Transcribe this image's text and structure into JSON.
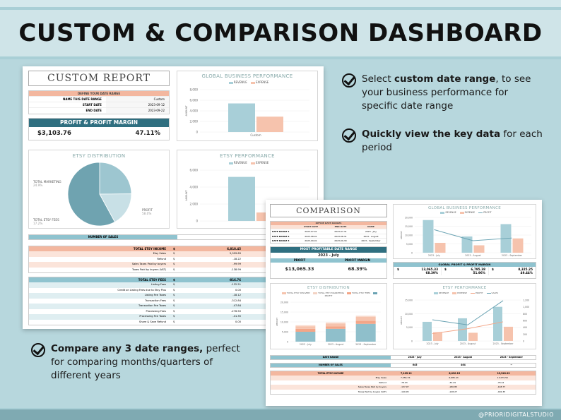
{
  "banner": {
    "title": "CUSTOM & COMPARISON DASHBOARD",
    "credit": "@PRIORIDIGITALSTUDIO"
  },
  "bullets": [
    {
      "bold": "custom date range",
      "pre": "Select ",
      "post": ", to see your business performance for specific date range"
    },
    {
      "bold": "Quickly view the key data",
      "pre": "",
      "post": " for each period"
    },
    {
      "bold": "Compare any 3 date ranges,",
      "pre": "",
      "post": " perfect for comparing months/quarters of different years"
    }
  ],
  "custom": {
    "title": "CUSTOM REPORT",
    "date_head": "DEFINE YOUR DATE RANGE",
    "date_rows": [
      {
        "label": "NAME THIS DATE RANGE",
        "value": "Custom"
      },
      {
        "label": "START DATE",
        "value": "2023-09-12"
      },
      {
        "label": "END DATE",
        "value": "2023-09-22"
      }
    ],
    "profit_head": "PROFIT & PROFIT MARGIN",
    "profit": "$3,103.76",
    "margin": "47.11%",
    "gbp_title": "GLOBAL BUSINESS PERFORMANCE",
    "legend_rev": "REVENUE",
    "legend_exp": "EXPENSE",
    "y_label": "AMOUNT",
    "gbp_ticks": [
      "8,000",
      "6,000",
      "4,000",
      "2,000",
      "0"
    ],
    "gbp_cat": "Custom",
    "dist_title": "ETSY DISTRIBUTION",
    "pie_labels": [
      {
        "name": "TOTAL MARKETING",
        "pct": "24.9%"
      },
      {
        "name": "TOTAL ETSY FEES",
        "pct": "17.2%"
      },
      {
        "name": "PROFIT",
        "pct": "58.0%"
      }
    ],
    "ep_title": "ETSY PERFORMANCE",
    "ep_ticks": [
      "6,000",
      "4,000",
      "2,000",
      "0"
    ],
    "sales_label": "NUMBER OF SALES",
    "sales_value": "438",
    "income_head": "TOTAL ETSY INCOME",
    "income_total": "6,818.45",
    "income_rows": [
      {
        "label": "Etsy Sales",
        "value": "5,099.69"
      },
      {
        "label": "Refund",
        "value": "-18.22"
      },
      {
        "label": "Sales Taxes Paid by buyers",
        "value": "-99.99"
      },
      {
        "label": "Taxes Paid by buyers (VAT)",
        "value": "-138.99"
      }
    ],
    "fees_head": "TOTAL ETSY FEES",
    "fees_total": "-816.76",
    "fee_rows": [
      {
        "label": "Listing Fees",
        "value": "-132.51"
      },
      {
        "label": "Credit on Listing Fees due to Etsy Plus",
        "value": "0.00"
      },
      {
        "label": "Listing Fee Taxes",
        "value": "-18.12"
      },
      {
        "label": "Transaction Fees",
        "value": "-312.84"
      },
      {
        "label": "Transaction Fee Taxes",
        "value": "-47.84"
      },
      {
        "label": "Processing Fees",
        "value": "-276.50"
      },
      {
        "label": "Processing Fee Taxes",
        "value": "-41.35"
      },
      {
        "label": "Share & Save Refund",
        "value": "0.00"
      }
    ],
    "currency": "$"
  },
  "comparison": {
    "title": "COMPARISON",
    "date_head": "DEFINE DATE RANGES",
    "cols": [
      "START DATE",
      "END DATE",
      "NAME"
    ],
    "ranges": [
      {
        "label": "DATE RANGE 1",
        "start": "2023-07-01",
        "end": "2023-07-31",
        "name": "2023 - July"
      },
      {
        "label": "DATE RANGE 2",
        "start": "2023-08-01",
        "end": "2023-08-31",
        "name": "2023 - August"
      },
      {
        "label": "DATE RANGE 3",
        "start": "2023-09-01",
        "end": "2023-09-30",
        "name": "2023 - September"
      }
    ],
    "most_head": "MOST PROFITABLE DATE RANGE",
    "most_value": "2023 - July",
    "profit_col": "PROFIT",
    "margin_col": "PROFIT MARGIN",
    "best_profit": "$13,065.33",
    "best_margin": "68.39%",
    "gbp_title": "GLOBAL BUSINESS PERFORMANCE",
    "gpm_head": "GLOBAL PROFIT & PROFIT MARGIN",
    "gpm": [
      {
        "profit": "13,065.33",
        "margin": "68.39%"
      },
      {
        "profit": "6,795.38",
        "margin": "51.96%"
      },
      {
        "profit": "8,325.25",
        "margin": "49.44%"
      }
    ],
    "legend_profit": "PROFIT",
    "legend_sales": "SALES",
    "gbp_ticks": [
      "20,000",
      "15,000",
      "10,000",
      "5,000",
      "0"
    ],
    "categories": [
      "2023 - July",
      "2023 - August",
      "2023 - September"
    ],
    "dist_title": "ETSY DISTRIBUTION",
    "dist_legend": [
      "TOTAL ETSY DELIVERY",
      "TOTAL ETSY MARKETING",
      "TOTAL ETSY FEES",
      "PROFIT"
    ],
    "dist_ticks": [
      "20,000",
      "15,000",
      "10,000",
      "5,000",
      "0"
    ],
    "ep_title": "ETSY PERFORMANCE",
    "ep_ticks": [
      "15,000",
      "10,000",
      "5,000",
      "0"
    ],
    "ep_right_ticks": [
      "1,200",
      "1,000",
      "800",
      "600",
      "400",
      "200",
      "0"
    ],
    "range_label": "DATE RANGE",
    "sales_label": "NUMBER OF SALES",
    "sales_values": [
      "645",
      "464",
      "--"
    ],
    "income_head": "TOTAL ETSY INCOME",
    "income_totals": [
      "7,105.12",
      "8,030.15",
      "13,549.99"
    ],
    "income_rows": [
      {
        "label": "Etsy Sales",
        "v": [
          "7,556.76",
          "6,685.43",
          "13,279.50"
        ]
      },
      {
        "label": "Refund",
        "v": [
          "-78.03",
          "-30.29",
          "-78.44"
        ]
      },
      {
        "label": "Sales Taxes Paid by buyers",
        "v": [
          "-137.97",
          "-180.85",
          "-148.77"
        ]
      },
      {
        "label": "Taxes Paid by buyers (VAT)",
        "v": [
          "-149.95",
          "-148.27",
          "-402.35"
        ]
      }
    ]
  },
  "colors": {
    "revenue": "#a8cfd8",
    "expense": "#f6c3ad",
    "profit_line": "#6aa3b3",
    "header_orange": "#f3b79f",
    "header_teal": "#8fc3cf"
  },
  "chart_data": [
    {
      "type": "bar",
      "title": "GLOBAL BUSINESS PERFORMANCE",
      "categories": [
        "Custom"
      ],
      "series": [
        {
          "name": "REVENUE",
          "values": [
            5400
          ]
        },
        {
          "name": "EXPENSE",
          "values": [
            2900
          ]
        }
      ],
      "ylabel": "AMOUNT",
      "ylim": [
        0,
        8000
      ]
    },
    {
      "type": "pie",
      "title": "ETSY DISTRIBUTION",
      "categories": [
        "TOTAL MARKETING",
        "TOTAL ETSY FEES",
        "PROFIT"
      ],
      "values": [
        24.9,
        17.2,
        58.0
      ]
    },
    {
      "type": "bar",
      "title": "ETSY PERFORMANCE",
      "categories": [
        ""
      ],
      "series": [
        {
          "name": "REVENUE",
          "values": [
            5200
          ]
        },
        {
          "name": "EXPENSE",
          "values": [
            1000
          ]
        }
      ],
      "ylabel": "AMOUNT",
      "ylim": [
        0,
        6000
      ]
    },
    {
      "type": "bar",
      "title": "GLOBAL BUSINESS PERFORMANCE",
      "categories": [
        "2023 - July",
        "2023 - August",
        "2023 - September"
      ],
      "series": [
        {
          "name": "REVENUE",
          "values": [
            18500,
            9200,
            16200
          ]
        },
        {
          "name": "EXPENSE",
          "values": [
            5600,
            4200,
            8100
          ]
        },
        {
          "name": "PROFIT",
          "values": [
            13065,
            6795,
            8325
          ]
        }
      ],
      "ylabel": "AMOUNT",
      "ylim": [
        0,
        20000
      ]
    },
    {
      "type": "bar",
      "title": "ETSY DISTRIBUTION",
      "categories": [
        "2023 - July",
        "2023 - August",
        "2023 - September"
      ],
      "series": [
        {
          "name": "PROFIT",
          "values": [
            5000,
            6500,
            9000
          ]
        },
        {
          "name": "TOTAL ETSY FEES",
          "values": [
            1500,
            1200,
            1500
          ]
        },
        {
          "name": "TOTAL ETSY MARKETING",
          "values": [
            1300,
            1500,
            2000
          ]
        },
        {
          "name": "TOTAL ETSY DELIVERY",
          "values": [
            500,
            500,
            600
          ]
        }
      ],
      "ylim": [
        0,
        20000
      ]
    },
    {
      "type": "bar",
      "title": "ETSY PERFORMANCE",
      "categories": [
        "2023 - July",
        "2023 - August",
        "2023 - September"
      ],
      "series": [
        {
          "name": "REVENUE",
          "values": [
            7000,
            8300,
            12500
          ]
        },
        {
          "name": "EXPENSE",
          "values": [
            3200,
            3000,
            5200
          ]
        },
        {
          "name": "PROFIT",
          "values": [
            2700,
            4500,
            7000
          ]
        },
        {
          "name": "SALES",
          "values": [
            620,
            470,
            1180
          ]
        }
      ],
      "ylim": [
        0,
        15000
      ]
    }
  ]
}
